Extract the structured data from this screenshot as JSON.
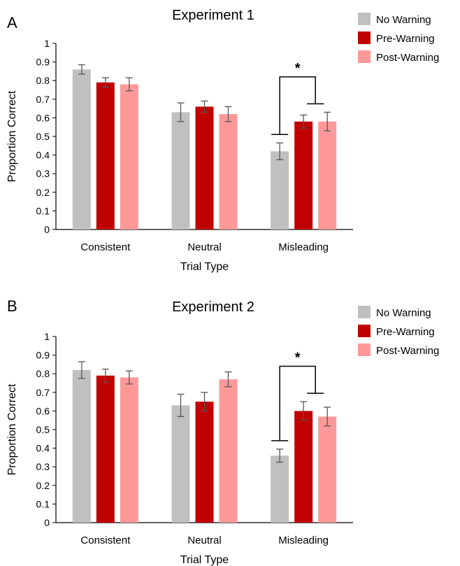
{
  "chart_data": [
    {
      "type": "bar",
      "panel_label": "A",
      "title": "Experiment 1",
      "xlabel": "Trial Type",
      "ylabel": "Proportion Correct",
      "ylim": [
        0,
        1
      ],
      "yticks": [
        "0",
        "0.1",
        "0.2",
        "0.3",
        "0.4",
        "0.5",
        "0.6",
        "0.7",
        "0.8",
        "0.9",
        "1"
      ],
      "categories": [
        "Consistent",
        "Neutral",
        "Misleading"
      ],
      "series": [
        {
          "name": "No Warning",
          "color": "#c0c0c0",
          "values": [
            0.86,
            0.63,
            0.42
          ],
          "errors": [
            0.025,
            0.05,
            0.045
          ]
        },
        {
          "name": "Pre-Warning",
          "color": "#c00000",
          "values": [
            0.79,
            0.66,
            0.58
          ],
          "errors": [
            0.025,
            0.03,
            0.035
          ]
        },
        {
          "name": "Post-Warning",
          "color": "#ff9999",
          "values": [
            0.78,
            0.62,
            0.58
          ],
          "errors": [
            0.035,
            0.04,
            0.05
          ]
        }
      ],
      "legend_position": "top-right",
      "significance": {
        "category": "Misleading",
        "marker": "*",
        "compares": [
          "No Warning",
          "Pre-Warning + Post-Warning"
        ]
      }
    },
    {
      "type": "bar",
      "panel_label": "B",
      "title": "Experiment 2",
      "xlabel": "Trial Type",
      "ylabel": "Proportion Correct",
      "ylim": [
        0,
        1
      ],
      "yticks": [
        "0",
        "0.1",
        "0.2",
        "0.3",
        "0.4",
        "0.5",
        "0.6",
        "0.7",
        "0.8",
        "0.9",
        "1"
      ],
      "categories": [
        "Consistent",
        "Neutral",
        "Misleading"
      ],
      "series": [
        {
          "name": "No Warning",
          "color": "#c0c0c0",
          "values": [
            0.82,
            0.63,
            0.36
          ],
          "errors": [
            0.045,
            0.06,
            0.035
          ]
        },
        {
          "name": "Pre-Warning",
          "color": "#c00000",
          "values": [
            0.79,
            0.65,
            0.6
          ],
          "errors": [
            0.035,
            0.05,
            0.05
          ]
        },
        {
          "name": "Post-Warning",
          "color": "#ff9999",
          "values": [
            0.78,
            0.77,
            0.57
          ],
          "errors": [
            0.035,
            0.04,
            0.05
          ]
        }
      ],
      "legend_position": "top-right",
      "significance": {
        "category": "Misleading",
        "marker": "*",
        "compares": [
          "No Warning",
          "Pre-Warning + Post-Warning"
        ]
      }
    }
  ]
}
